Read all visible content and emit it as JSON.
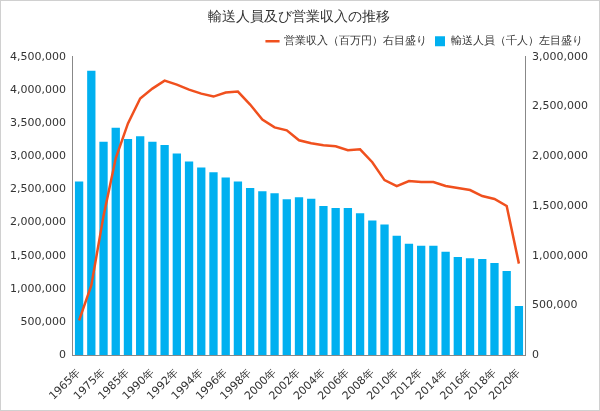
{
  "chart_data": {
    "type": "bar",
    "title": "輸送人員及び営業収入の推移",
    "categories": [
      "1965年",
      null,
      "1975年",
      null,
      "1985年",
      null,
      "1990年",
      null,
      "1992年",
      null,
      "1994年",
      null,
      "1996年",
      null,
      "1998年",
      null,
      "2000年",
      null,
      "2002年",
      null,
      "2004年",
      null,
      "2006年",
      null,
      "2008年",
      null,
      "2010年",
      null,
      "2012年",
      null,
      "2014年",
      null,
      "2016年",
      null,
      "2018年",
      null,
      "2020年"
    ],
    "series": [
      {
        "name": "輸送人員（千人）左目盛り",
        "type": "bar",
        "color": "#00b0f0",
        "values": [
          2620000,
          4290000,
          3220000,
          3430000,
          3260000,
          3300000,
          3220000,
          3170000,
          3040000,
          2920000,
          2830000,
          2760000,
          2680000,
          2620000,
          2520000,
          2470000,
          2440000,
          2350000,
          2380000,
          2360000,
          2250000,
          2220000,
          2220000,
          2140000,
          2030000,
          1970000,
          1800000,
          1680000,
          1650000,
          1650000,
          1560000,
          1480000,
          1460000,
          1450000,
          1390000,
          1270000,
          740000
        ]
      },
      {
        "name": "営業収入（百万円）右目盛り",
        "type": "line",
        "color": "#f0501e",
        "axis": "y2",
        "marker": "none",
        "line_style": "solid",
        "values": [
          350000,
          700000,
          1400000,
          1980000,
          2330000,
          2580000,
          2680000,
          2760000,
          2720000,
          2670000,
          2630000,
          2600000,
          2640000,
          2650000,
          2520000,
          2370000,
          2290000,
          2260000,
          2160000,
          2130000,
          2110000,
          2100000,
          2060000,
          2070000,
          1940000,
          1760000,
          1700000,
          1750000,
          1740000,
          1740000,
          1700000,
          1680000,
          1660000,
          1600000,
          1570000,
          1500000,
          920000
        ]
      }
    ],
    "ylim": [
      0,
      4500000
    ],
    "yticks": [
      0,
      {
        "value": 500000,
        "label": "500,000"
      },
      {
        "value": 1000000,
        "label": "1,000,000"
      },
      {
        "value": 1500000,
        "label": "1,500,000"
      },
      {
        "value": 2000000,
        "label": "2,000,000"
      },
      {
        "value": 2500000,
        "label": "2,500,000"
      },
      {
        "value": 3000000,
        "label": "3,000,000"
      },
      {
        "value": 3500000,
        "label": "3,500,000"
      },
      {
        "value": 4000000,
        "label": "4,000,000"
      },
      {
        "value": 4500000,
        "label": "4,500,000"
      }
    ],
    "y2lim": [
      0,
      3000000
    ],
    "y2ticks": [
      0,
      {
        "value": 500000,
        "label": "500,000"
      },
      {
        "value": 1000000,
        "label": "1,000,000"
      },
      {
        "value": 1500000,
        "label": "1,500,000"
      },
      {
        "value": 2000000,
        "label": "2,000,000"
      },
      {
        "value": 2500000,
        "label": "2,500,000"
      },
      {
        "value": 3000000,
        "label": "3,000,000"
      }
    ],
    "grid": false,
    "legend": "upper right"
  }
}
